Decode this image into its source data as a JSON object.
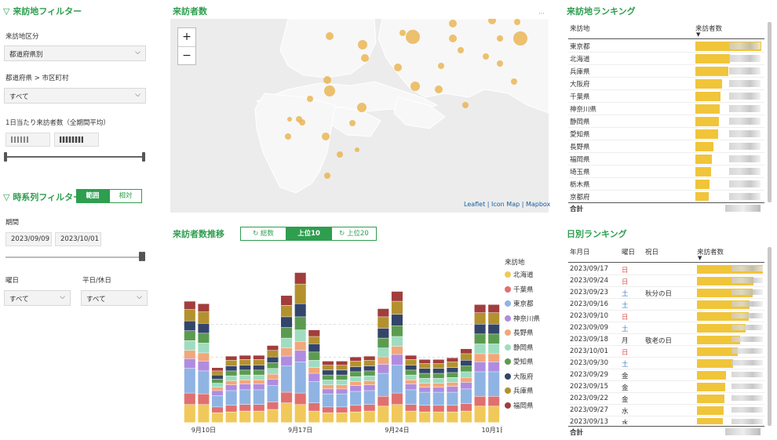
{
  "filters": {
    "title": "来訪地フィルター",
    "area_type_label": "来訪地区分",
    "area_type_value": "都道府県別",
    "pref_city_label": "都道府県 > 市区町村",
    "pref_city_value": "すべて",
    "daily_visitors_label": "1日当たり来訪者数（全期間平均）"
  },
  "timeseries_filter": {
    "title": "時系列フィルター",
    "toggle_range": "範囲",
    "toggle_relative": "相対",
    "period_label": "期間",
    "date_from": "2023/09/09",
    "date_to": "2023/10/01",
    "weekday_label": "曜日",
    "weekday_value": "すべて",
    "holiday_label": "平日/休日",
    "holiday_value": "すべて"
  },
  "map": {
    "title": "来訪者数",
    "zoom_in": "+",
    "zoom_out": "−",
    "attribution": "Leaflet | Icon Map | Mapbox",
    "more": "···"
  },
  "ranking": {
    "title": "来訪地ランキング",
    "col_place": "来訪地",
    "col_visitors": "来訪者数",
    "rows": [
      {
        "name": "東京都",
        "bar": 1.0
      },
      {
        "name": "北海道",
        "bar": 0.52
      },
      {
        "name": "兵庫県",
        "bar": 0.5
      },
      {
        "name": "大阪府",
        "bar": 0.41
      },
      {
        "name": "千葉県",
        "bar": 0.38
      },
      {
        "name": "神奈川県",
        "bar": 0.37
      },
      {
        "name": "静岡県",
        "bar": 0.36
      },
      {
        "name": "愛知県",
        "bar": 0.34
      },
      {
        "name": "長野県",
        "bar": 0.27
      },
      {
        "name": "福岡県",
        "bar": 0.25
      },
      {
        "name": "埼玉県",
        "bar": 0.24
      },
      {
        "name": "栃木県",
        "bar": 0.22
      },
      {
        "name": "京都府",
        "bar": 0.2
      }
    ],
    "total_label": "合計"
  },
  "trend": {
    "title": "来訪者数推移",
    "btn_total": "総数",
    "btn_top10": "上位10",
    "btn_top20": "上位20",
    "legend_title": "来訪地",
    "x_ticks": [
      "9月10日",
      "9月17日",
      "9月24日",
      "10月1日"
    ]
  },
  "daily": {
    "title": "日別ランキング",
    "col_date": "年月日",
    "col_dow": "曜日",
    "col_holiday": "祝日",
    "col_visitors": "来訪者数",
    "rows": [
      {
        "date": "2023/09/17",
        "dow": "日",
        "holiday": "",
        "bar": 1.0,
        "color": "#d9534f"
      },
      {
        "date": "2023/09/24",
        "dow": "日",
        "holiday": "",
        "bar": 0.86,
        "color": "#d9534f"
      },
      {
        "date": "2023/09/23",
        "dow": "土",
        "holiday": "秋分の日",
        "bar": 0.84,
        "color": "#4a7fc1"
      },
      {
        "date": "2023/09/16",
        "dow": "土",
        "holiday": "",
        "bar": 0.8,
        "color": "#4a7fc1"
      },
      {
        "date": "2023/09/10",
        "dow": "日",
        "holiday": "",
        "bar": 0.78,
        "color": "#d9534f"
      },
      {
        "date": "2023/09/09",
        "dow": "土",
        "holiday": "",
        "bar": 0.74,
        "color": "#4a7fc1"
      },
      {
        "date": "2023/09/18",
        "dow": "月",
        "holiday": "敬老の日",
        "bar": 0.66,
        "color": "#333"
      },
      {
        "date": "2023/10/01",
        "dow": "日",
        "holiday": "",
        "bar": 0.62,
        "color": "#d9534f"
      },
      {
        "date": "2023/09/30",
        "dow": "土",
        "holiday": "",
        "bar": 0.55,
        "color": "#4a7fc1"
      },
      {
        "date": "2023/09/29",
        "dow": "金",
        "holiday": "",
        "bar": 0.44,
        "color": "#333"
      },
      {
        "date": "2023/09/15",
        "dow": "金",
        "holiday": "",
        "bar": 0.43,
        "color": "#333"
      },
      {
        "date": "2023/09/22",
        "dow": "金",
        "holiday": "",
        "bar": 0.42,
        "color": "#333"
      },
      {
        "date": "2023/09/27",
        "dow": "水",
        "holiday": "",
        "bar": 0.4,
        "color": "#333"
      },
      {
        "date": "2023/09/13",
        "dow": "水",
        "holiday": "",
        "bar": 0.39,
        "color": "#333"
      }
    ],
    "total_label": "合計"
  },
  "chart_data": {
    "type": "bar",
    "title": "来訪者数推移",
    "stacked": true,
    "categories": [
      "9/9",
      "9/10",
      "9/11",
      "9/12",
      "9/13",
      "9/14",
      "9/15",
      "9/16",
      "9/17",
      "9/18",
      "9/19",
      "9/20",
      "9/21",
      "9/22",
      "9/23",
      "9/24",
      "9/25",
      "9/26",
      "9/27",
      "9/28",
      "9/29",
      "9/30",
      "10/1"
    ],
    "x_tick_labels": [
      "9月10日",
      "9月17日",
      "9月24日",
      "10月1日"
    ],
    "series": [
      {
        "name": "北海道",
        "color": "#f0c95a",
        "values": [
          22,
          22,
          12,
          13,
          14,
          14,
          16,
          24,
          22,
          14,
          12,
          12,
          13,
          14,
          20,
          22,
          14,
          13,
          13,
          13,
          14,
          20,
          20
        ]
      },
      {
        "name": "千葉県",
        "color": "#e07070",
        "values": [
          14,
          13,
          7,
          8,
          8,
          8,
          9,
          13,
          14,
          10,
          7,
          7,
          8,
          8,
          12,
          14,
          8,
          8,
          8,
          8,
          9,
          12,
          12
        ]
      },
      {
        "name": "東京都",
        "color": "#8fb4e3",
        "values": [
          30,
          28,
          14,
          18,
          18,
          18,
          20,
          32,
          38,
          26,
          16,
          16,
          17,
          17,
          28,
          34,
          18,
          16,
          16,
          16,
          18,
          30,
          30
        ]
      },
      {
        "name": "神奈川県",
        "color": "#b08ce0",
        "values": [
          12,
          12,
          6,
          7,
          7,
          7,
          8,
          12,
          14,
          10,
          6,
          6,
          7,
          7,
          11,
          13,
          7,
          6,
          6,
          7,
          8,
          12,
          12
        ]
      },
      {
        "name": "長野県",
        "color": "#f2a77a",
        "values": [
          10,
          10,
          4,
          5,
          5,
          5,
          6,
          10,
          11,
          7,
          5,
          5,
          5,
          5,
          9,
          10,
          5,
          5,
          5,
          5,
          6,
          10,
          10
        ]
      },
      {
        "name": "静岡県",
        "color": "#9fdcc0",
        "values": [
          12,
          12,
          5,
          6,
          6,
          6,
          7,
          12,
          14,
          9,
          6,
          6,
          6,
          6,
          11,
          12,
          6,
          6,
          6,
          6,
          7,
          12,
          12
        ]
      },
      {
        "name": "愛知県",
        "color": "#5b9b4f",
        "values": [
          12,
          12,
          5,
          6,
          6,
          6,
          7,
          13,
          16,
          10,
          6,
          6,
          6,
          6,
          12,
          13,
          6,
          6,
          6,
          6,
          7,
          12,
          12
        ]
      },
      {
        "name": "大阪府",
        "color": "#34456b",
        "values": [
          12,
          12,
          5,
          6,
          6,
          6,
          7,
          13,
          16,
          10,
          6,
          6,
          6,
          6,
          12,
          14,
          6,
          6,
          6,
          6,
          7,
          12,
          12
        ]
      },
      {
        "name": "兵庫県",
        "color": "#b3912e",
        "values": [
          14,
          14,
          5,
          7,
          7,
          7,
          8,
          14,
          24,
          9,
          6,
          6,
          7,
          7,
          14,
          16,
          7,
          6,
          6,
          7,
          8,
          14,
          14
        ]
      },
      {
        "name": "福岡県",
        "color": "#a23d3d",
        "values": [
          10,
          10,
          4,
          5,
          5,
          5,
          6,
          12,
          14,
          8,
          5,
          5,
          5,
          5,
          10,
          12,
          5,
          5,
          5,
          5,
          6,
          10,
          10
        ]
      }
    ],
    "ylim": [
      0,
      200
    ],
    "legend_title": "来訪地",
    "legend_position": "right",
    "grid": true
  }
}
